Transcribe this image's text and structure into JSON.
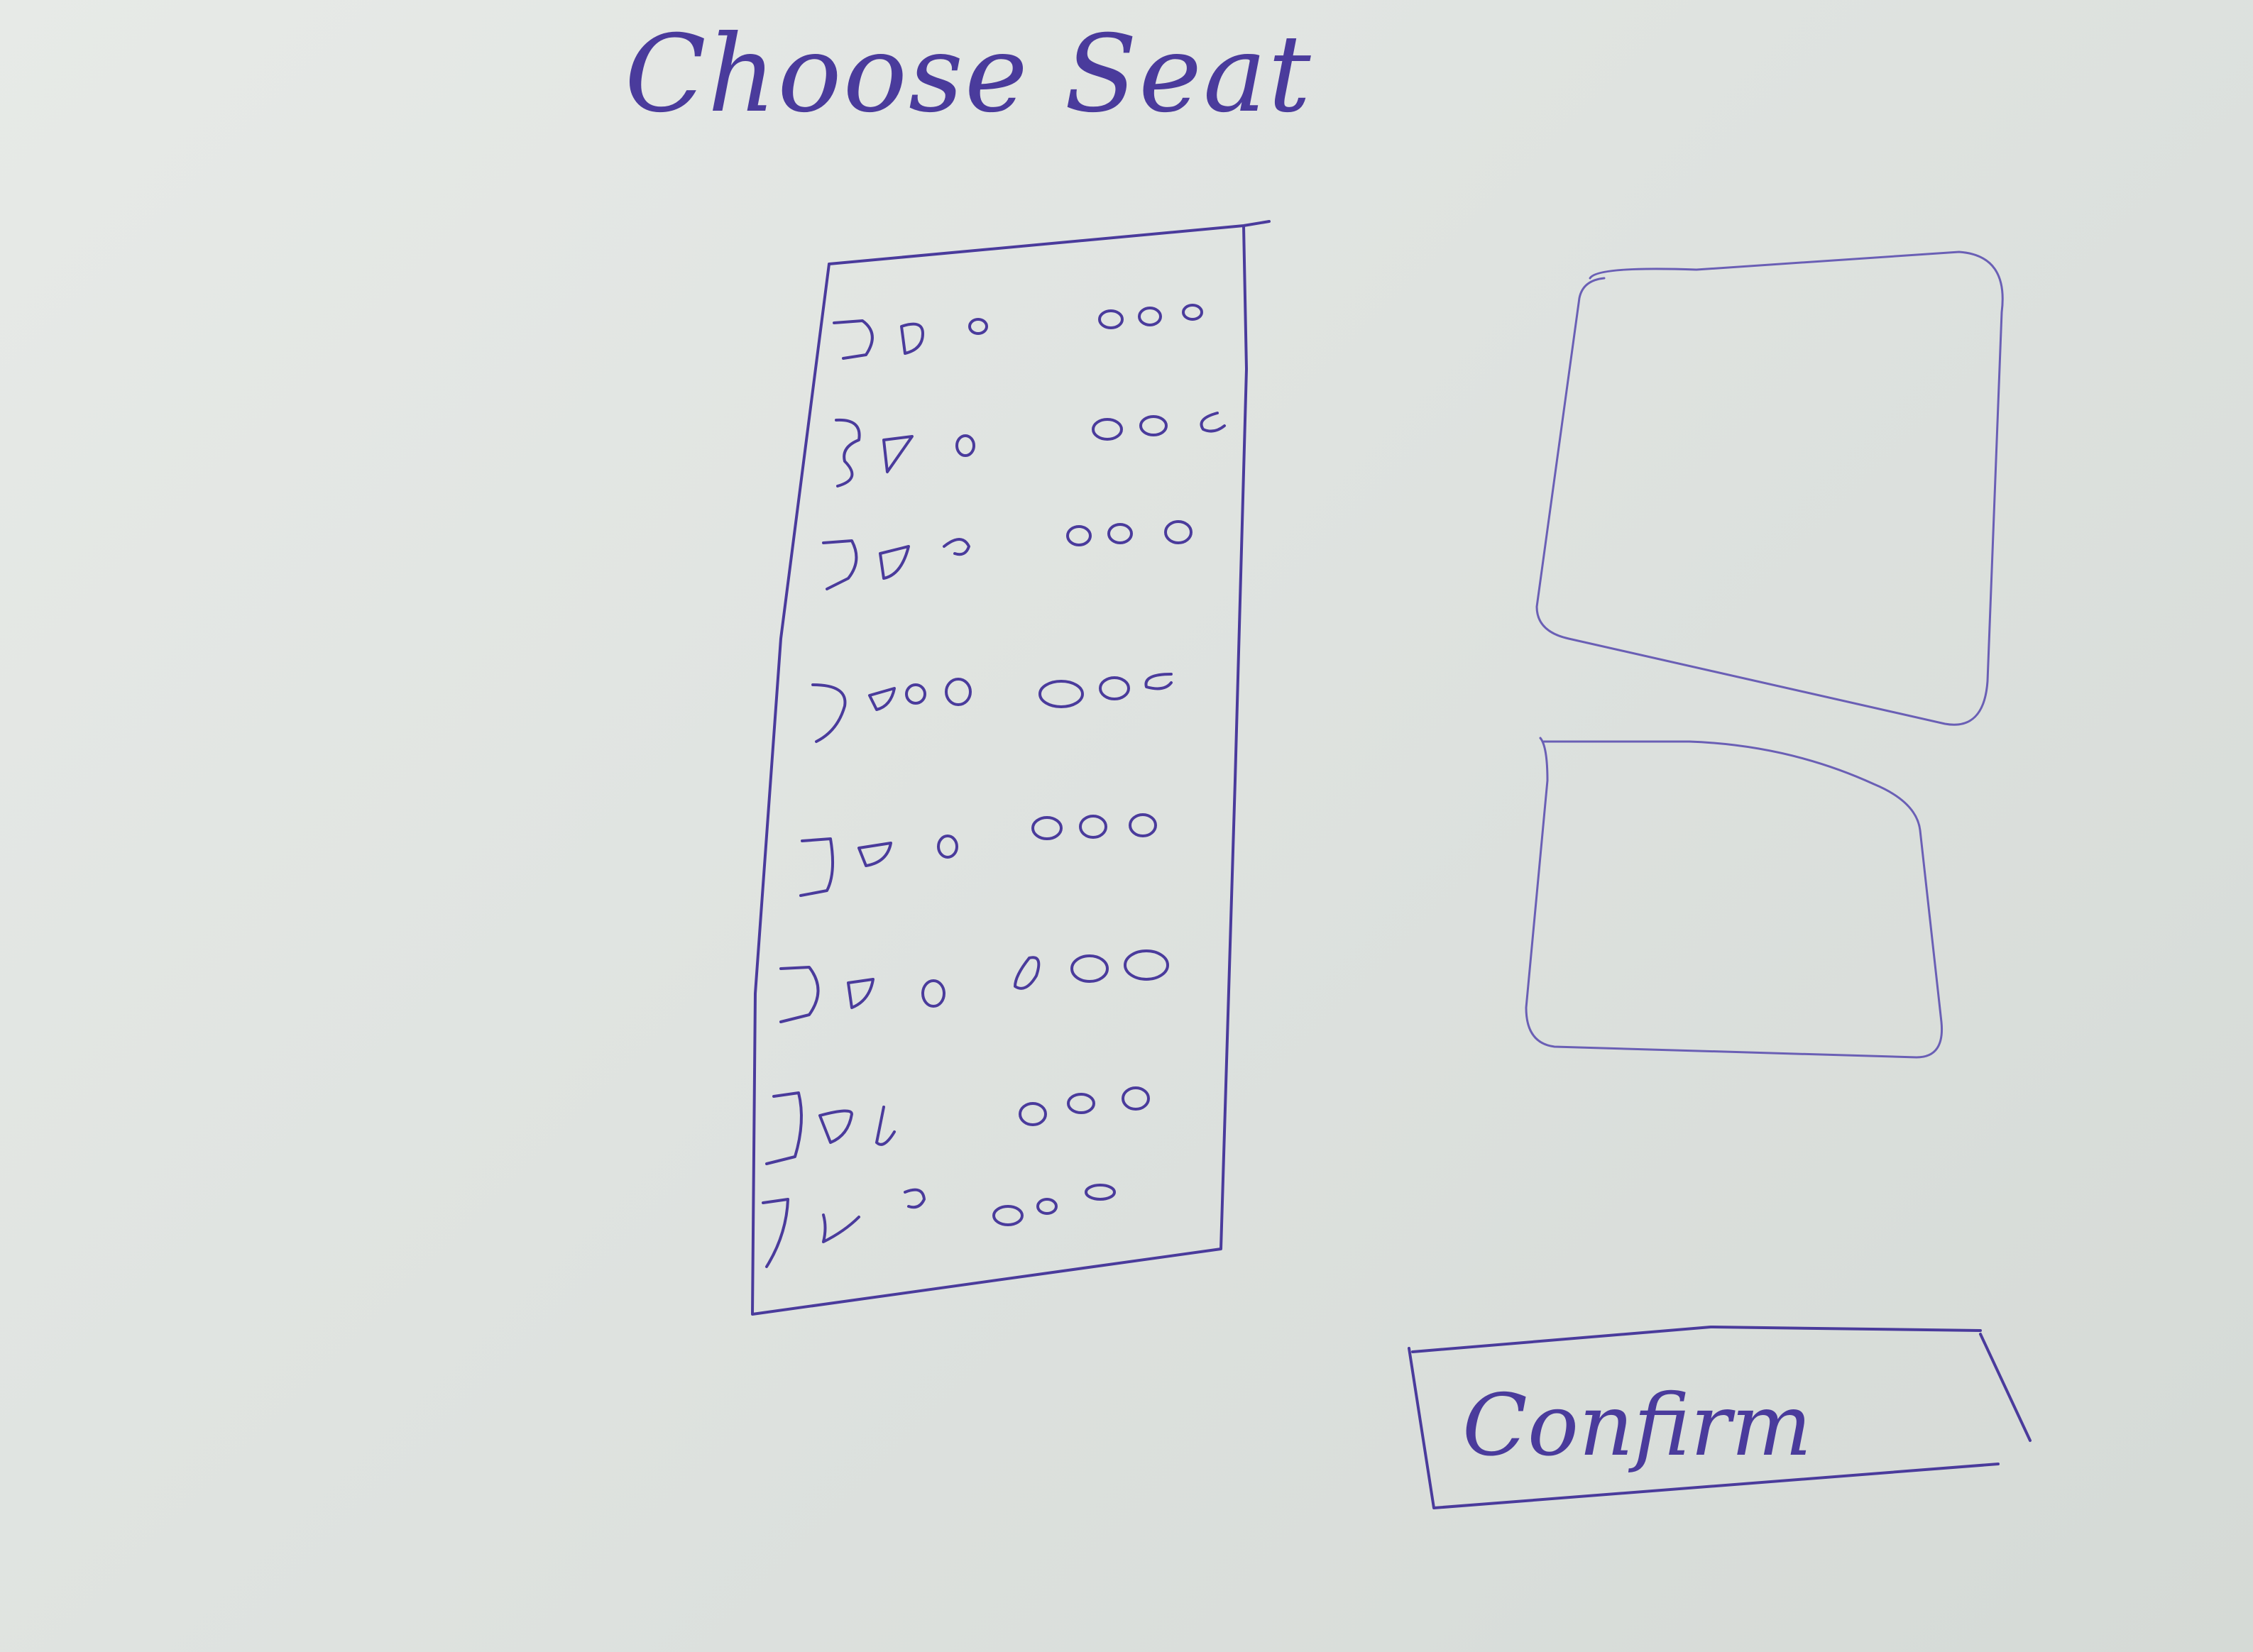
{
  "page": {
    "title": "Choose Seat"
  },
  "confirm_button": {
    "label": "Confirm"
  },
  "seat_map": {
    "rows": 8,
    "left_group_seats": 3,
    "right_group_seats": 3
  },
  "colors": {
    "ink": "#4a3b9c",
    "paper": "#e2e6e3"
  }
}
